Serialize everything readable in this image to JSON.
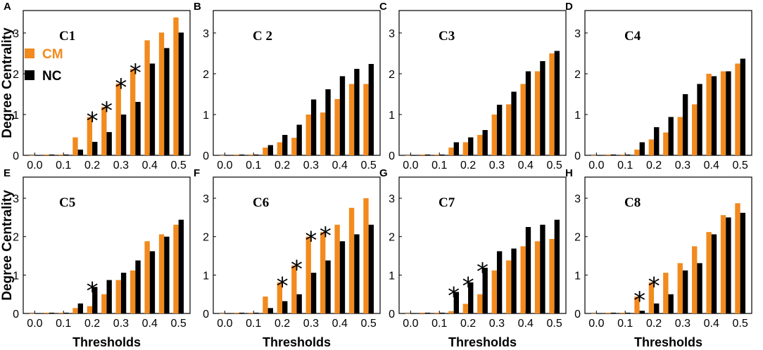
{
  "colors": {
    "cm": "#f28a1e",
    "nc": "#000000"
  },
  "chart_data": [
    {
      "panel": "A",
      "title": "C1",
      "type": "bar",
      "categories": [
        "0.0",
        "0.05",
        "0.1",
        "0.15",
        "0.2",
        "0.25",
        "0.3",
        "0.35",
        "0.4",
        "0.45",
        "0.5"
      ],
      "xticks": [
        "0.0",
        "0.1",
        "0.2",
        "0.3",
        "0.4",
        "0.5"
      ],
      "series": [
        {
          "name": "CM",
          "values": [
            0,
            0.02,
            0.02,
            0.44,
            0.94,
            1.19,
            1.76,
            2.12,
            2.82,
            3.01,
            3.38
          ]
        },
        {
          "name": "NC",
          "values": [
            0,
            0.02,
            0.02,
            0.14,
            0.33,
            0.57,
            1.0,
            1.31,
            2.25,
            2.63,
            3.01
          ]
        }
      ],
      "significant": [
        "0.2",
        "0.25",
        "0.3",
        "0.35"
      ],
      "significance_marker": "*",
      "xlabel": "",
      "ylabel": "Degree Centrality",
      "yticks": [
        "0",
        "1",
        "2",
        "3"
      ],
      "ylim": [
        0,
        3.55
      ],
      "legend": {
        "show": true,
        "placement": "top-left",
        "entries": [
          "CM",
          "NC"
        ]
      }
    },
    {
      "panel": "B",
      "title": "C 2",
      "type": "bar",
      "categories": [
        "0.0",
        "0.05",
        "0.1",
        "0.15",
        "0.2",
        "0.25",
        "0.3",
        "0.35",
        "0.4",
        "0.45",
        "0.5"
      ],
      "xticks": [
        "0.0",
        "0.1",
        "0.2",
        "0.3",
        "0.4",
        "0.5"
      ],
      "series": [
        {
          "name": "CM",
          "values": [
            0,
            0.02,
            0.02,
            0.19,
            0.32,
            0.43,
            1.0,
            1.05,
            1.38,
            1.75,
            1.75
          ]
        },
        {
          "name": "NC",
          "values": [
            0,
            0.02,
            0.02,
            0.25,
            0.5,
            0.75,
            1.37,
            1.62,
            1.94,
            2.12,
            2.24
          ]
        }
      ],
      "significant": [],
      "significance_marker": "*",
      "xlabel": "",
      "ylabel": "",
      "yticks": [
        "0",
        "1",
        "2",
        "3"
      ],
      "ylim": [
        0,
        3.55
      ],
      "legend": {
        "show": false
      }
    },
    {
      "panel": "C",
      "title": "C3",
      "type": "bar",
      "categories": [
        "0.0",
        "0.05",
        "0.1",
        "0.15",
        "0.2",
        "0.25",
        "0.3",
        "0.35",
        "0.4",
        "0.45",
        "0.5"
      ],
      "xticks": [
        "0.0",
        "0.1",
        "0.2",
        "0.3",
        "0.4",
        "0.5"
      ],
      "series": [
        {
          "name": "CM",
          "values": [
            0,
            0.02,
            0.02,
            0.19,
            0.32,
            0.5,
            1.0,
            1.25,
            1.75,
            2.06,
            2.5
          ]
        },
        {
          "name": "NC",
          "values": [
            0,
            0.02,
            0.02,
            0.32,
            0.44,
            0.62,
            1.24,
            1.56,
            2.06,
            2.31,
            2.56
          ]
        }
      ],
      "significant": [],
      "significance_marker": "*",
      "xlabel": "",
      "ylabel": "",
      "yticks": [
        "0",
        "1",
        "2",
        "3"
      ],
      "ylim": [
        0,
        3.55
      ],
      "legend": {
        "show": false
      }
    },
    {
      "panel": "D",
      "title": "C4",
      "type": "bar",
      "categories": [
        "0.0",
        "0.05",
        "0.1",
        "0.15",
        "0.2",
        "0.25",
        "0.3",
        "0.35",
        "0.4",
        "0.45",
        "0.5"
      ],
      "xticks": [
        "0.0",
        "0.1",
        "0.2",
        "0.3",
        "0.4",
        "0.5"
      ],
      "series": [
        {
          "name": "CM",
          "values": [
            0,
            0.02,
            0.02,
            0.14,
            0.39,
            0.56,
            0.94,
            1.25,
            2.0,
            2.06,
            2.25
          ]
        },
        {
          "name": "NC",
          "values": [
            0,
            0.02,
            0.02,
            0.32,
            0.69,
            0.94,
            1.5,
            1.75,
            1.94,
            2.06,
            2.37
          ]
        }
      ],
      "significant": [],
      "significance_marker": "*",
      "xlabel": "",
      "ylabel": "",
      "yticks": [
        "0",
        "1",
        "2",
        "3"
      ],
      "ylim": [
        0,
        3.55
      ],
      "legend": {
        "show": false
      }
    },
    {
      "panel": "E",
      "title": "C5",
      "type": "bar",
      "categories": [
        "0.0",
        "0.05",
        "0.1",
        "0.15",
        "0.2",
        "0.25",
        "0.3",
        "0.35",
        "0.4",
        "0.45",
        "0.5"
      ],
      "xticks": [
        "0.0",
        "0.1",
        "0.2",
        "0.3",
        "0.4",
        "0.5"
      ],
      "series": [
        {
          "name": "CM",
          "values": [
            0,
            0.02,
            0.02,
            0.14,
            0.19,
            0.5,
            0.87,
            1.12,
            1.88,
            2.06,
            2.31
          ]
        },
        {
          "name": "NC",
          "values": [
            0,
            0.02,
            0.02,
            0.26,
            0.69,
            0.87,
            1.06,
            1.38,
            1.62,
            2.0,
            2.44
          ]
        }
      ],
      "significant": [
        "0.2"
      ],
      "significance_marker": "*",
      "xlabel": "Thresholds",
      "ylabel": "Degree Centrality",
      "yticks": [
        "0",
        "1",
        "2",
        "3"
      ],
      "ylim": [
        0,
        3.55
      ],
      "legend": {
        "show": false
      }
    },
    {
      "panel": "F",
      "title": "C6",
      "type": "bar",
      "categories": [
        "0.0",
        "0.05",
        "0.1",
        "0.15",
        "0.2",
        "0.25",
        "0.3",
        "0.35",
        "0.4",
        "0.45",
        "0.5"
      ],
      "xticks": [
        "0.0",
        "0.1",
        "0.2",
        "0.3",
        "0.4",
        "0.5"
      ],
      "series": [
        {
          "name": "CM",
          "values": [
            0,
            0.02,
            0.02,
            0.44,
            0.81,
            1.25,
            2.0,
            2.12,
            2.31,
            2.75,
            3.0
          ]
        },
        {
          "name": "NC",
          "values": [
            0,
            0.02,
            0.02,
            0.14,
            0.32,
            0.5,
            1.06,
            1.38,
            1.88,
            2.06,
            2.31
          ]
        }
      ],
      "significant": [
        "0.2",
        "0.25",
        "0.3",
        "0.35"
      ],
      "significance_marker": "*",
      "xlabel": "Thresholds",
      "ylabel": "",
      "yticks": [
        "0",
        "1",
        "2",
        "3"
      ],
      "ylim": [
        0,
        3.55
      ],
      "legend": {
        "show": false
      }
    },
    {
      "panel": "G",
      "title": "C7",
      "type": "bar",
      "categories": [
        "0.0",
        "0.05",
        "0.1",
        "0.15",
        "0.2",
        "0.25",
        "0.3",
        "0.35",
        "0.4",
        "0.45",
        "0.5"
      ],
      "xticks": [
        "0.0",
        "0.1",
        "0.2",
        "0.3",
        "0.4",
        "0.5"
      ],
      "series": [
        {
          "name": "CM",
          "values": [
            0,
            0.02,
            0.02,
            0.06,
            0.25,
            0.5,
            1.12,
            1.38,
            1.75,
            1.88,
            1.94
          ]
        },
        {
          "name": "NC",
          "values": [
            0,
            0.02,
            0.02,
            0.56,
            0.81,
            1.19,
            1.62,
            1.69,
            2.25,
            2.31,
            2.44
          ]
        }
      ],
      "significant": [
        "0.15",
        "0.2",
        "0.25"
      ],
      "significance_marker": "*",
      "xlabel": "Thresholds",
      "ylabel": "",
      "yticks": [
        "0",
        "1",
        "2",
        "3"
      ],
      "ylim": [
        0,
        3.55
      ],
      "legend": {
        "show": false
      }
    },
    {
      "panel": "H",
      "title": "C8",
      "type": "bar",
      "categories": [
        "0.0",
        "0.05",
        "0.1",
        "0.15",
        "0.2",
        "0.25",
        "0.3",
        "0.35",
        "0.4",
        "0.45",
        "0.5"
      ],
      "xticks": [
        "0.0",
        "0.1",
        "0.2",
        "0.3",
        "0.4",
        "0.5"
      ],
      "series": [
        {
          "name": "CM",
          "values": [
            0,
            0.02,
            0.02,
            0.44,
            0.81,
            1.06,
            1.31,
            1.75,
            2.12,
            2.56,
            2.87
          ]
        },
        {
          "name": "NC",
          "values": [
            0,
            0.02,
            0.02,
            0.07,
            0.26,
            0.5,
            1.12,
            1.31,
            2.06,
            2.5,
            2.62
          ]
        }
      ],
      "significant": [
        "0.15",
        "0.2"
      ],
      "significance_marker": "*",
      "xlabel": "Thresholds",
      "ylabel": "",
      "yticks": [
        "0",
        "1",
        "2",
        "3"
      ],
      "ylim": [
        0,
        3.55
      ],
      "legend": {
        "show": false
      }
    }
  ]
}
